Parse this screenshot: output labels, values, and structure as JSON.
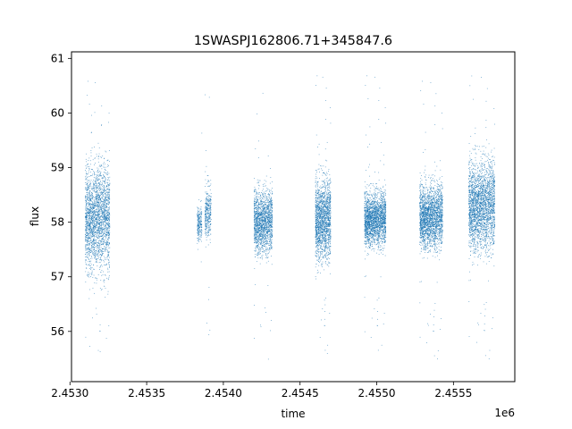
{
  "chart_data": {
    "type": "scatter",
    "title": "1SWASPJ162806.71+345847.6",
    "xlabel": "time",
    "ylabel": "flux",
    "x_offset_label": "1e6",
    "x_ticks": [
      2.453,
      2.4535,
      2.454,
      2.4545,
      2.455,
      2.4555
    ],
    "x_tick_labels": [
      "2.4530",
      "2.4535",
      "2.4540",
      "2.4545",
      "2.4550",
      "2.4555"
    ],
    "y_ticks": [
      56,
      57,
      58,
      59,
      60,
      61
    ],
    "y_tick_labels": [
      "56",
      "57",
      "58",
      "59",
      "60",
      "61"
    ],
    "xlim": [
      2.45301,
      2.4559
    ],
    "ylim": [
      55.08,
      61.12
    ],
    "grid": false,
    "legend": "none",
    "marker_color": "#1f77b4",
    "series": [
      {
        "clusters": [
          {
            "x_range": [
              2.4531,
              2.45326
            ],
            "y_center": 58.05,
            "y_spread": 1.2,
            "y_min": 55.4,
            "y_max": 60.7,
            "density": 2400
          },
          {
            "x_range": [
              2.45383,
              2.45386
            ],
            "y_center": 58.0,
            "y_spread": 0.4,
            "y_min": 55.4,
            "y_max": 60.6,
            "density": 250
          },
          {
            "x_range": [
              2.45388,
              2.45392
            ],
            "y_center": 58.2,
            "y_spread": 0.6,
            "y_min": 55.8,
            "y_max": 60.6,
            "density": 350
          },
          {
            "x_range": [
              2.4542,
              2.45432
            ],
            "y_center": 58.0,
            "y_spread": 0.7,
            "y_min": 55.4,
            "y_max": 60.5,
            "density": 1700
          },
          {
            "x_range": [
              2.4546,
              2.4547
            ],
            "y_center": 58.05,
            "y_spread": 0.9,
            "y_min": 55.5,
            "y_max": 60.8,
            "density": 1800
          },
          {
            "x_range": [
              2.45492,
              2.45506
            ],
            "y_center": 58.05,
            "y_spread": 0.6,
            "y_min": 55.5,
            "y_max": 60.8,
            "density": 2200
          },
          {
            "x_range": [
              2.45528,
              2.45543
            ],
            "y_center": 58.1,
            "y_spread": 0.7,
            "y_min": 55.4,
            "y_max": 60.7,
            "density": 2300
          },
          {
            "x_range": [
              2.4556,
              2.45577
            ],
            "y_center": 58.3,
            "y_spread": 1.0,
            "y_min": 55.4,
            "y_max": 60.8,
            "density": 2600
          }
        ]
      }
    ]
  }
}
